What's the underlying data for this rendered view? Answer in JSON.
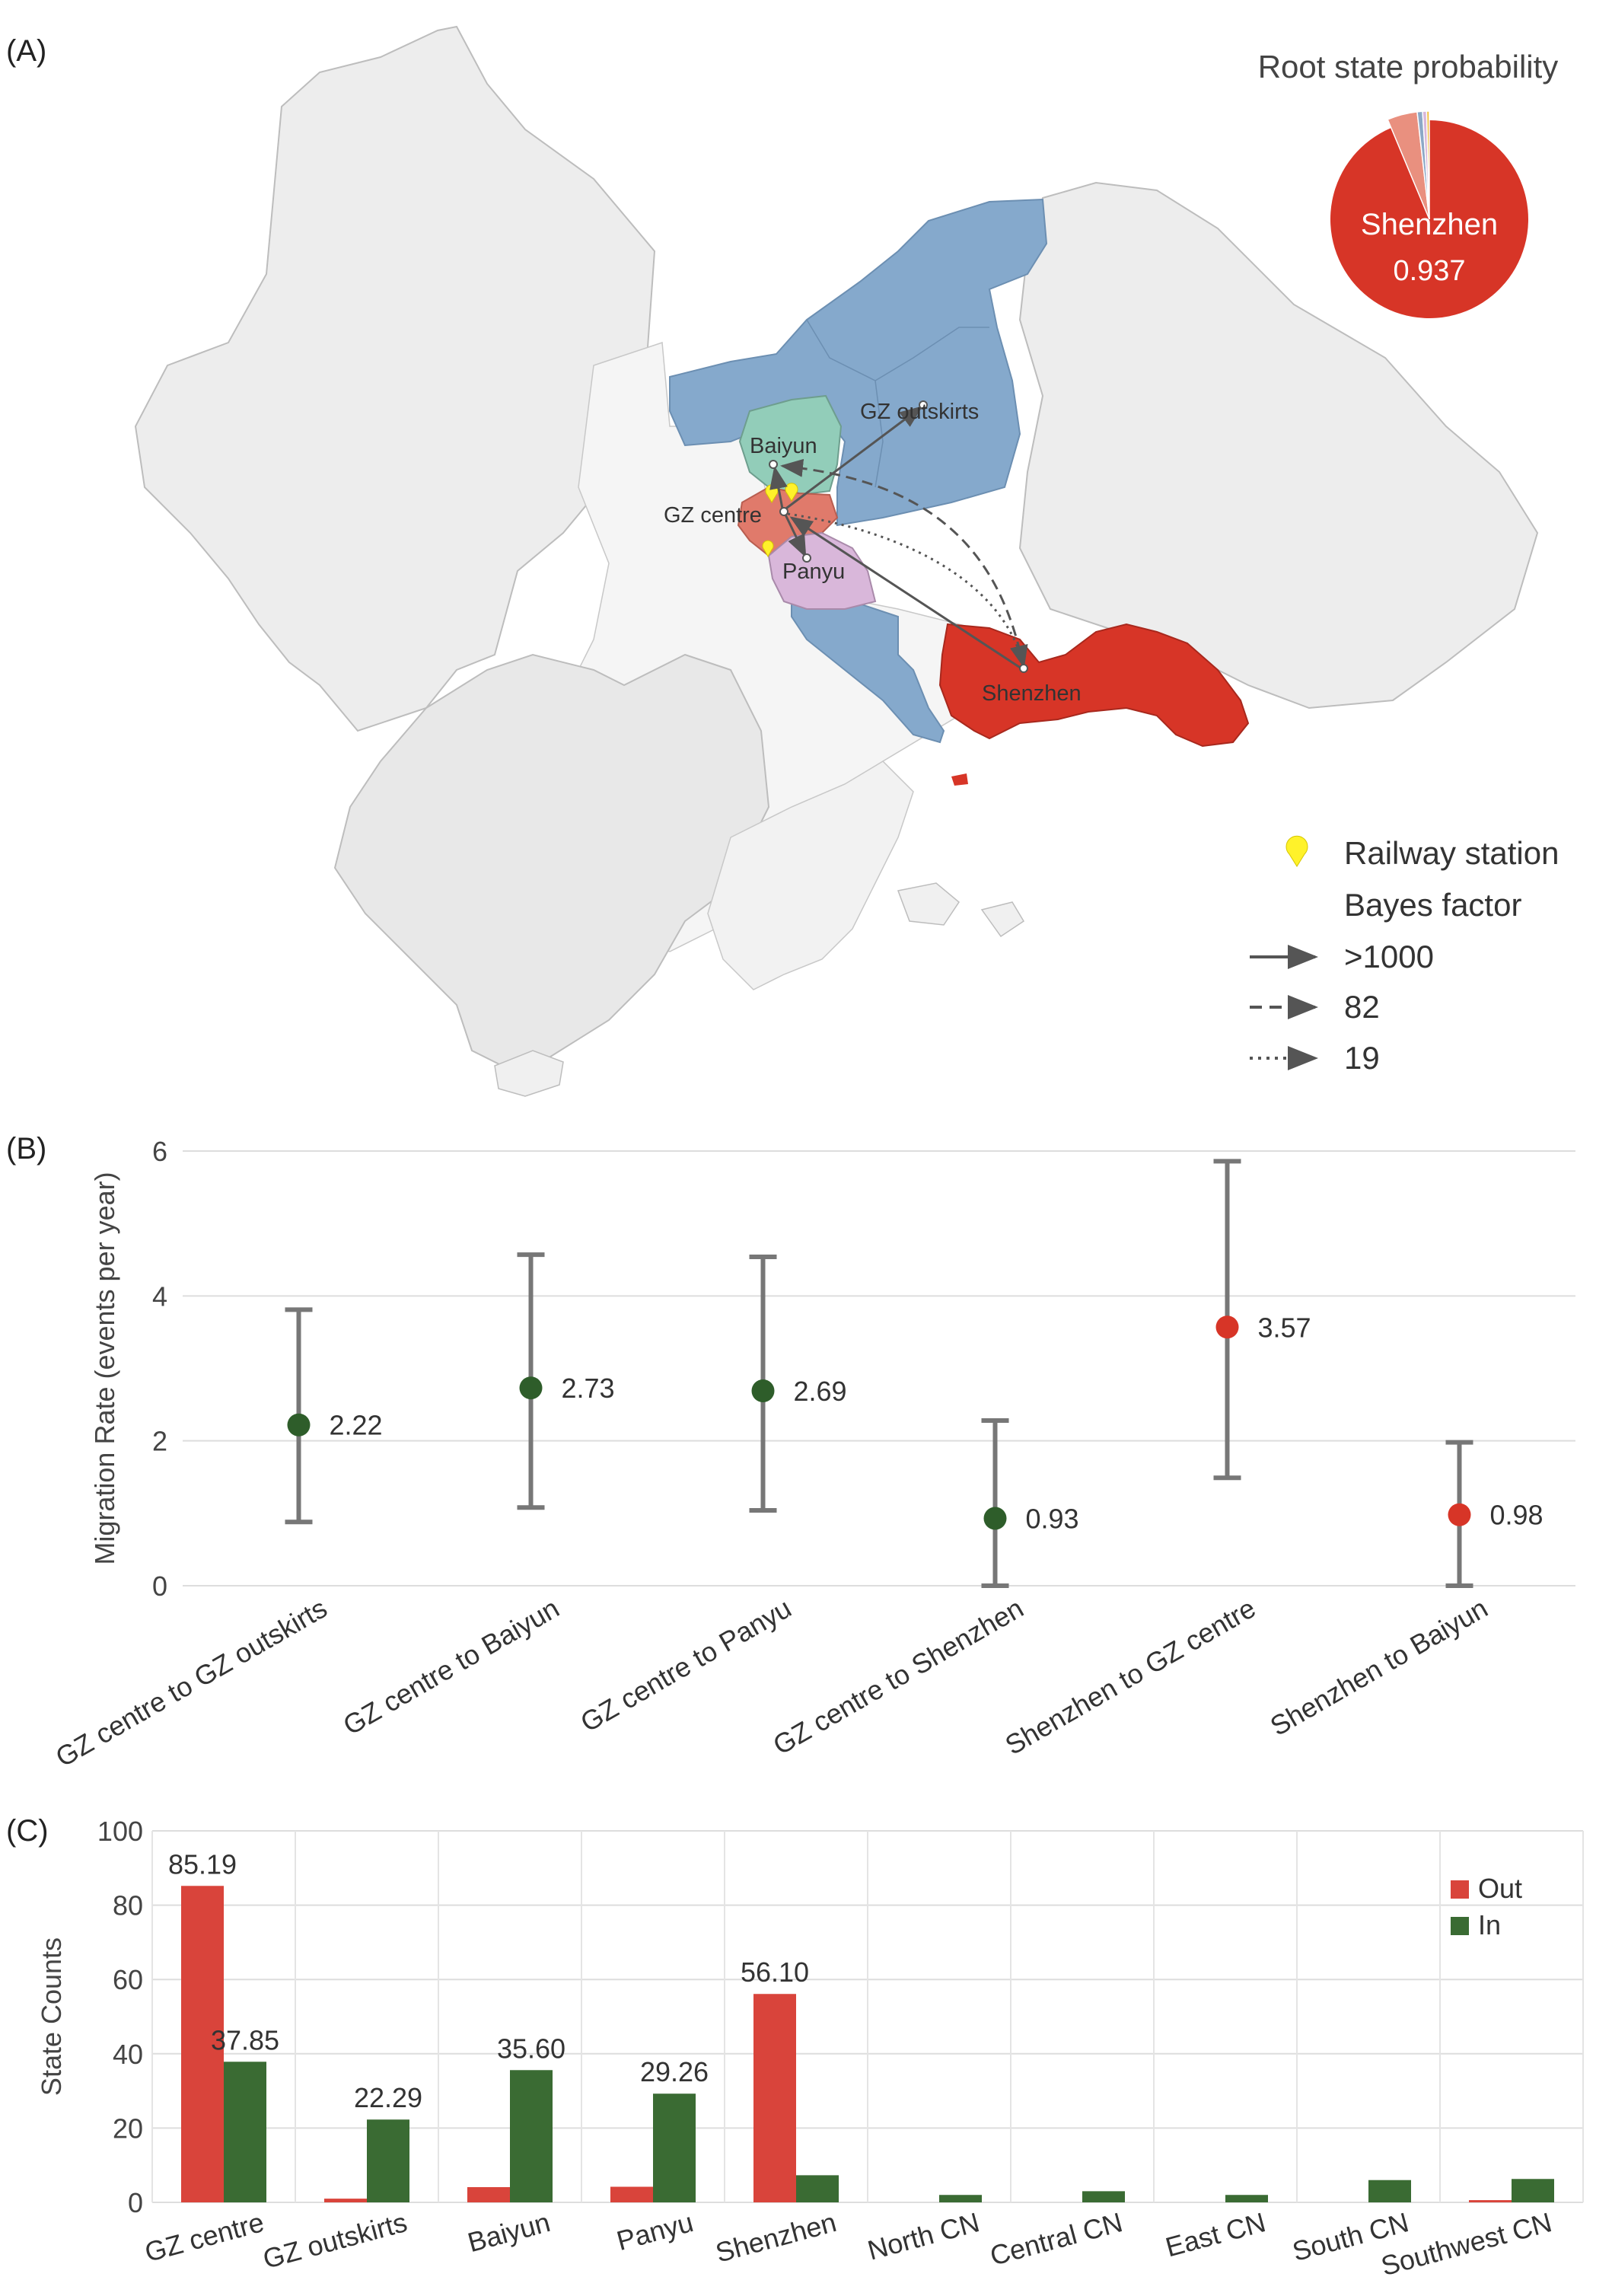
{
  "panels": {
    "a_label": "(A)",
    "b_label": "(B)",
    "c_label": "(C)"
  },
  "map": {
    "root_title": "Root state probability",
    "root_state": "Shenzhen",
    "root_prob_text": "0.937",
    "root_prob": 0.937,
    "regions": [
      {
        "id": "baiyun",
        "label": "Baiyun",
        "color": "#92CDB9"
      },
      {
        "id": "gz_outskirts",
        "label": "GZ outskirts",
        "color": "#85A9CC"
      },
      {
        "id": "gz_centre",
        "label": "GZ centre",
        "color": "#E07A6B"
      },
      {
        "id": "panyu",
        "label": "Panyu",
        "color": "#D9B7DA"
      },
      {
        "id": "shenzhen",
        "label": "Shenzhen",
        "color": "#D73527"
      }
    ],
    "legend": {
      "railway": "Railway station",
      "bayes_title": "Bayes factor",
      "solid": ">1000",
      "dashed": "82",
      "dotted": "19"
    },
    "colors": {
      "land_light": "#F2F2F2",
      "land_mid": "#E6E6E6",
      "railway": "#FFF22A",
      "arrow": "#555555"
    }
  },
  "chart_data": [
    {
      "type": "scatter",
      "title": "",
      "ylabel": "Migration Rate (events per year)",
      "ylim": [
        0,
        6
      ],
      "yticks": [
        0,
        2,
        4,
        6
      ],
      "grid": true,
      "categories": [
        "GZ centre to GZ outskirts",
        "GZ centre to Baiyun",
        "GZ centre to Panyu",
        "GZ centre to Shenzhen",
        "Shenzhen to GZ centre",
        "Shenzhen to Baiyun"
      ],
      "values": [
        2.22,
        2.73,
        2.69,
        0.93,
        3.57,
        0.98
      ],
      "lower": [
        0.88,
        1.08,
        1.04,
        0.0,
        1.49,
        0.0
      ],
      "upper": [
        3.81,
        4.57,
        4.54,
        2.28,
        5.86,
        1.98
      ],
      "value_labels": [
        "2.22",
        "2.73",
        "2.69",
        "0.93",
        "3.57",
        "0.98"
      ],
      "point_colors": [
        "#2E5D2A",
        "#2E5D2A",
        "#2E5D2A",
        "#2E5D2A",
        "#D73527",
        "#D73527"
      ]
    },
    {
      "type": "bar",
      "title": "",
      "ylabel": "State Counts",
      "ylim": [
        0,
        100
      ],
      "yticks": [
        0,
        20,
        40,
        60,
        80,
        100
      ],
      "grid": true,
      "legend_position": "top-right",
      "categories": [
        "GZ centre",
        "GZ outskirts",
        "Baiyun",
        "Panyu",
        "Shenzhen",
        "North CN",
        "Central CN",
        "East CN",
        "South CN",
        "Southwest CN"
      ],
      "series": [
        {
          "name": "Out",
          "color": "#D9443B",
          "values": [
            85.19,
            1.0,
            4.1,
            4.2,
            56.1,
            0.0,
            0.0,
            0.0,
            0.0,
            0.6
          ]
        },
        {
          "name": "In",
          "color": "#3A6B33",
          "values": [
            37.85,
            22.29,
            35.6,
            29.26,
            7.3,
            2.0,
            3.0,
            2.0,
            6.0,
            6.3
          ]
        }
      ],
      "labels": [
        {
          "series": 0,
          "index": 0,
          "text": "85.19"
        },
        {
          "series": 1,
          "index": 0,
          "text": "37.85"
        },
        {
          "series": 1,
          "index": 1,
          "text": "22.29"
        },
        {
          "series": 1,
          "index": 2,
          "text": "35.60"
        },
        {
          "series": 1,
          "index": 3,
          "text": "29.26"
        },
        {
          "series": 0,
          "index": 4,
          "text": "56.10"
        }
      ]
    }
  ]
}
